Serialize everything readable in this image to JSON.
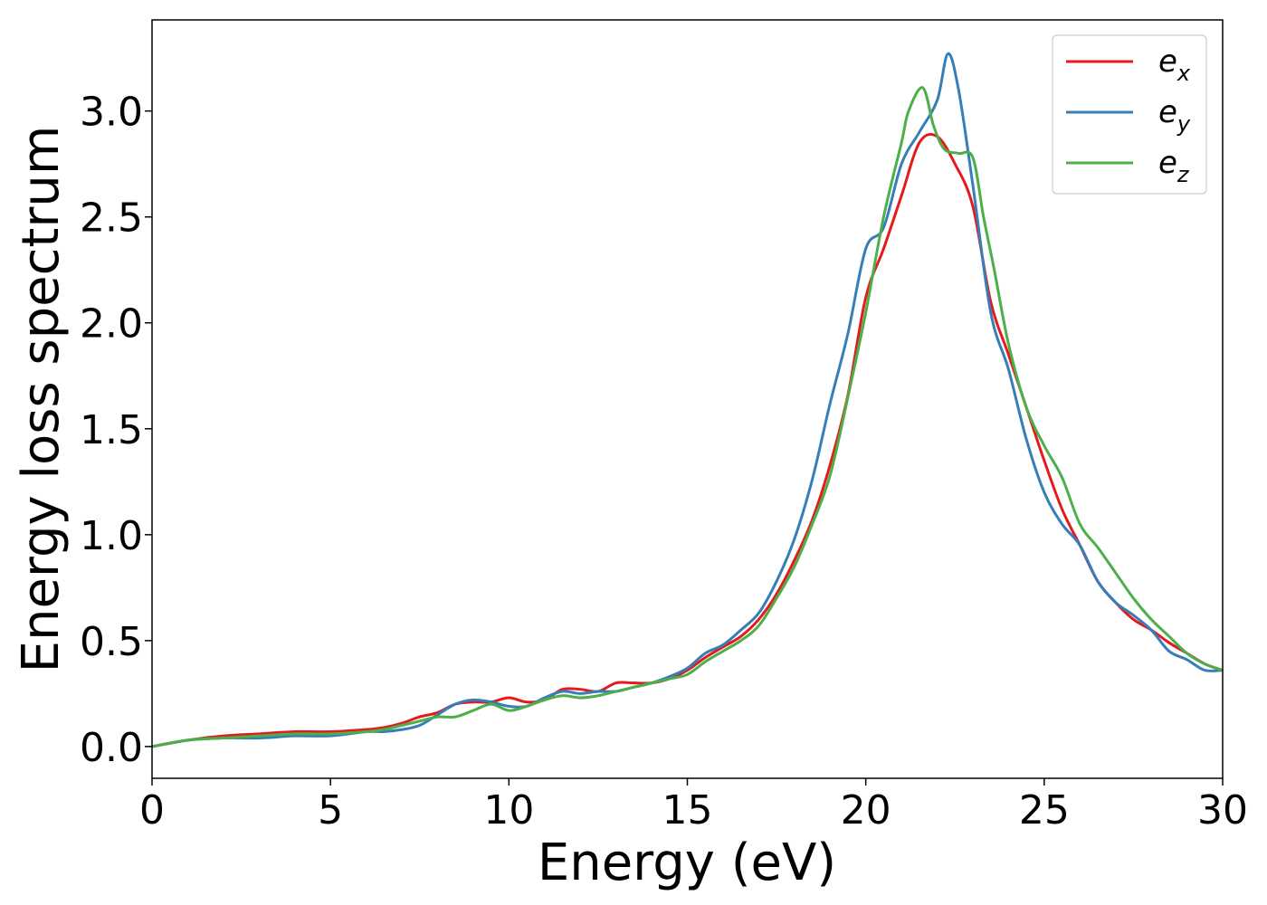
{
  "chart_data": {
    "type": "line",
    "title": "",
    "xlabel": "Energy (eV)",
    "ylabel": "Energy loss spectrum",
    "xlim": [
      0,
      30
    ],
    "ylim": [
      -0.15,
      3.43
    ],
    "xticks": [
      0,
      5,
      10,
      15,
      20,
      25,
      30
    ],
    "xtick_labels": [
      "0",
      "5",
      "10",
      "15",
      "20",
      "25",
      "30"
    ],
    "yticks": [
      0.0,
      0.5,
      1.0,
      1.5,
      2.0,
      2.5,
      3.0
    ],
    "ytick_labels": [
      "0.0",
      "0.5",
      "1.0",
      "1.5",
      "2.0",
      "2.5",
      "3.0"
    ],
    "grid": false,
    "legend_position": "top-right",
    "series": [
      {
        "name": "e_x",
        "label_base": "e",
        "label_sub": "x",
        "color": "#e41a1c",
        "x": [
          0,
          1,
          2,
          3,
          4,
          5,
          6,
          6.5,
          7,
          7.5,
          8,
          8.5,
          9,
          9.5,
          10,
          10.5,
          11,
          11.5,
          12,
          12.5,
          13,
          13.5,
          14,
          14.5,
          15,
          15.5,
          16,
          16.5,
          17,
          17.5,
          18,
          18.5,
          19,
          19.5,
          20,
          20.5,
          21,
          21.5,
          22,
          22.5,
          23,
          23.5,
          24,
          24.5,
          25,
          25.5,
          26,
          26.5,
          27,
          27.5,
          28,
          28.5,
          29,
          29.5,
          30
        ],
        "y": [
          0,
          0.03,
          0.05,
          0.06,
          0.07,
          0.07,
          0.08,
          0.09,
          0.11,
          0.14,
          0.16,
          0.2,
          0.21,
          0.21,
          0.23,
          0.21,
          0.22,
          0.27,
          0.27,
          0.26,
          0.3,
          0.3,
          0.3,
          0.32,
          0.36,
          0.42,
          0.47,
          0.52,
          0.6,
          0.72,
          0.88,
          1.07,
          1.33,
          1.66,
          2.12,
          2.35,
          2.6,
          2.85,
          2.88,
          2.75,
          2.55,
          2.1,
          1.85,
          1.6,
          1.35,
          1.12,
          0.95,
          0.78,
          0.68,
          0.6,
          0.55,
          0.49,
          0.44,
          0.39,
          0.36
        ]
      },
      {
        "name": "e_y",
        "label_base": "e",
        "label_sub": "y",
        "color": "#377eb8",
        "x": [
          0,
          1,
          2,
          3,
          4,
          5,
          6,
          6.5,
          7,
          7.5,
          8,
          8.5,
          9,
          9.5,
          10,
          10.5,
          11,
          11.5,
          12,
          12.5,
          13,
          13.5,
          14,
          14.5,
          15,
          15.5,
          16,
          16.5,
          17,
          17.5,
          18,
          18.5,
          19,
          19.5,
          20,
          20.5,
          21,
          21.5,
          22,
          22.3,
          22.6,
          23,
          23.5,
          24,
          24.5,
          25,
          25.5,
          26,
          26.5,
          27,
          27.5,
          28,
          28.5,
          29,
          29.5,
          30
        ],
        "y": [
          0,
          0.03,
          0.04,
          0.04,
          0.05,
          0.05,
          0.07,
          0.07,
          0.08,
          0.1,
          0.15,
          0.2,
          0.22,
          0.21,
          0.19,
          0.19,
          0.23,
          0.26,
          0.25,
          0.26,
          0.26,
          0.28,
          0.3,
          0.33,
          0.37,
          0.44,
          0.48,
          0.55,
          0.63,
          0.78,
          0.98,
          1.26,
          1.62,
          1.95,
          2.35,
          2.45,
          2.75,
          2.9,
          3.05,
          3.27,
          3.1,
          2.65,
          2.05,
          1.78,
          1.45,
          1.2,
          1.05,
          0.95,
          0.78,
          0.68,
          0.62,
          0.55,
          0.45,
          0.41,
          0.36,
          0.36
        ]
      },
      {
        "name": "e_z",
        "label_base": "e",
        "label_sub": "z",
        "color": "#4daf4a",
        "x": [
          0,
          1,
          2,
          3,
          4,
          5,
          6,
          6.5,
          7,
          7.5,
          8,
          8.5,
          9,
          9.5,
          10,
          10.5,
          11,
          11.5,
          12,
          12.5,
          13,
          13.5,
          14,
          14.5,
          15,
          15.5,
          16,
          16.5,
          17,
          17.5,
          18,
          18.5,
          19,
          19.5,
          20,
          20.5,
          21,
          21.2,
          21.6,
          21.9,
          22.2,
          22.6,
          23,
          23.3,
          23.6,
          24,
          24.5,
          25,
          25.5,
          26,
          26.5,
          27,
          27.5,
          28,
          28.5,
          29,
          29.5,
          30
        ],
        "y": [
          0,
          0.03,
          0.04,
          0.05,
          0.06,
          0.06,
          0.07,
          0.08,
          0.1,
          0.12,
          0.14,
          0.14,
          0.17,
          0.2,
          0.17,
          0.19,
          0.22,
          0.24,
          0.23,
          0.24,
          0.26,
          0.28,
          0.3,
          0.32,
          0.34,
          0.4,
          0.45,
          0.5,
          0.57,
          0.7,
          0.85,
          1.05,
          1.28,
          1.65,
          2.05,
          2.5,
          2.85,
          3.0,
          3.11,
          2.93,
          2.82,
          2.8,
          2.78,
          2.5,
          2.25,
          1.9,
          1.6,
          1.42,
          1.27,
          1.05,
          0.94,
          0.82,
          0.7,
          0.6,
          0.52,
          0.44,
          0.39,
          0.36
        ]
      }
    ]
  }
}
